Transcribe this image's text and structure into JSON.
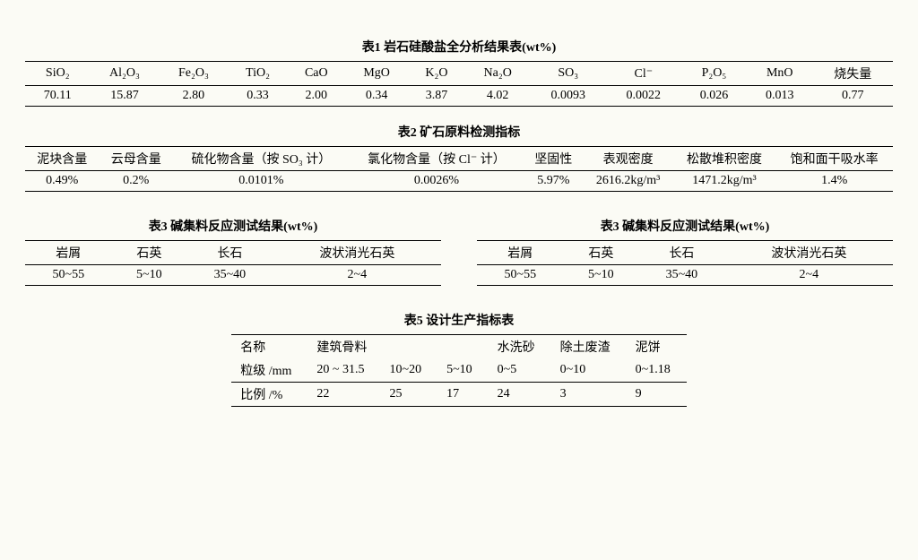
{
  "table1": {
    "title": "表1   岩石硅酸盐全分析结果表(wt%)",
    "headers": [
      "SiO₂",
      "Al₂O₃",
      "Fe₂O₃",
      "TiO₂",
      "CaO",
      "MgO",
      "K₂O",
      "Na₂O",
      "SO₃",
      "Cl⁻",
      "P₂O₅",
      "MnO",
      "烧失量"
    ],
    "row": [
      "70.11",
      "15.87",
      "2.80",
      "0.33",
      "2.00",
      "0.34",
      "3.87",
      "4.02",
      "0.0093",
      "0.0022",
      "0.026",
      "0.013",
      "0.77"
    ],
    "font_size": 14,
    "border_color": "#000000",
    "background": "#fbfbf5"
  },
  "table2": {
    "title": "表2   矿石原料检测指标",
    "headers": [
      "泥块含量",
      "云母含量",
      "硫化物含量（按 SO₃ 计）",
      "氯化物含量（按 Cl⁻ 计）",
      "坚固性",
      "表观密度",
      "松散堆积密度",
      "饱和面干吸水率"
    ],
    "row": [
      "0.49%",
      "0.2%",
      "0.0101%",
      "0.0026%",
      "5.97%",
      "2616.2kg/m³",
      "1471.2kg/m³",
      "1.4%"
    ]
  },
  "table3": {
    "left_title": "表3   碱集料反应测试结果(wt%)",
    "right_title": "表3   碱集料反应测试结果(wt%)",
    "headers": [
      "岩屑",
      "石英",
      "长石",
      "波状消光石英"
    ],
    "row": [
      "50~55",
      "5~10",
      "35~40",
      "2~4"
    ]
  },
  "table5": {
    "title": "表5   设计生产指标表",
    "r1": [
      "名称",
      "建筑骨料",
      "",
      "",
      "水洗砂",
      "除土废渣",
      "泥饼"
    ],
    "r2": [
      "粒级 /mm",
      "20 ~ 31.5",
      "10~20",
      "5~10",
      "0~5",
      "0~10",
      "0~1.18"
    ],
    "r3": [
      "比例 /%",
      "22",
      "25",
      "17",
      "24",
      "3",
      "9"
    ]
  }
}
